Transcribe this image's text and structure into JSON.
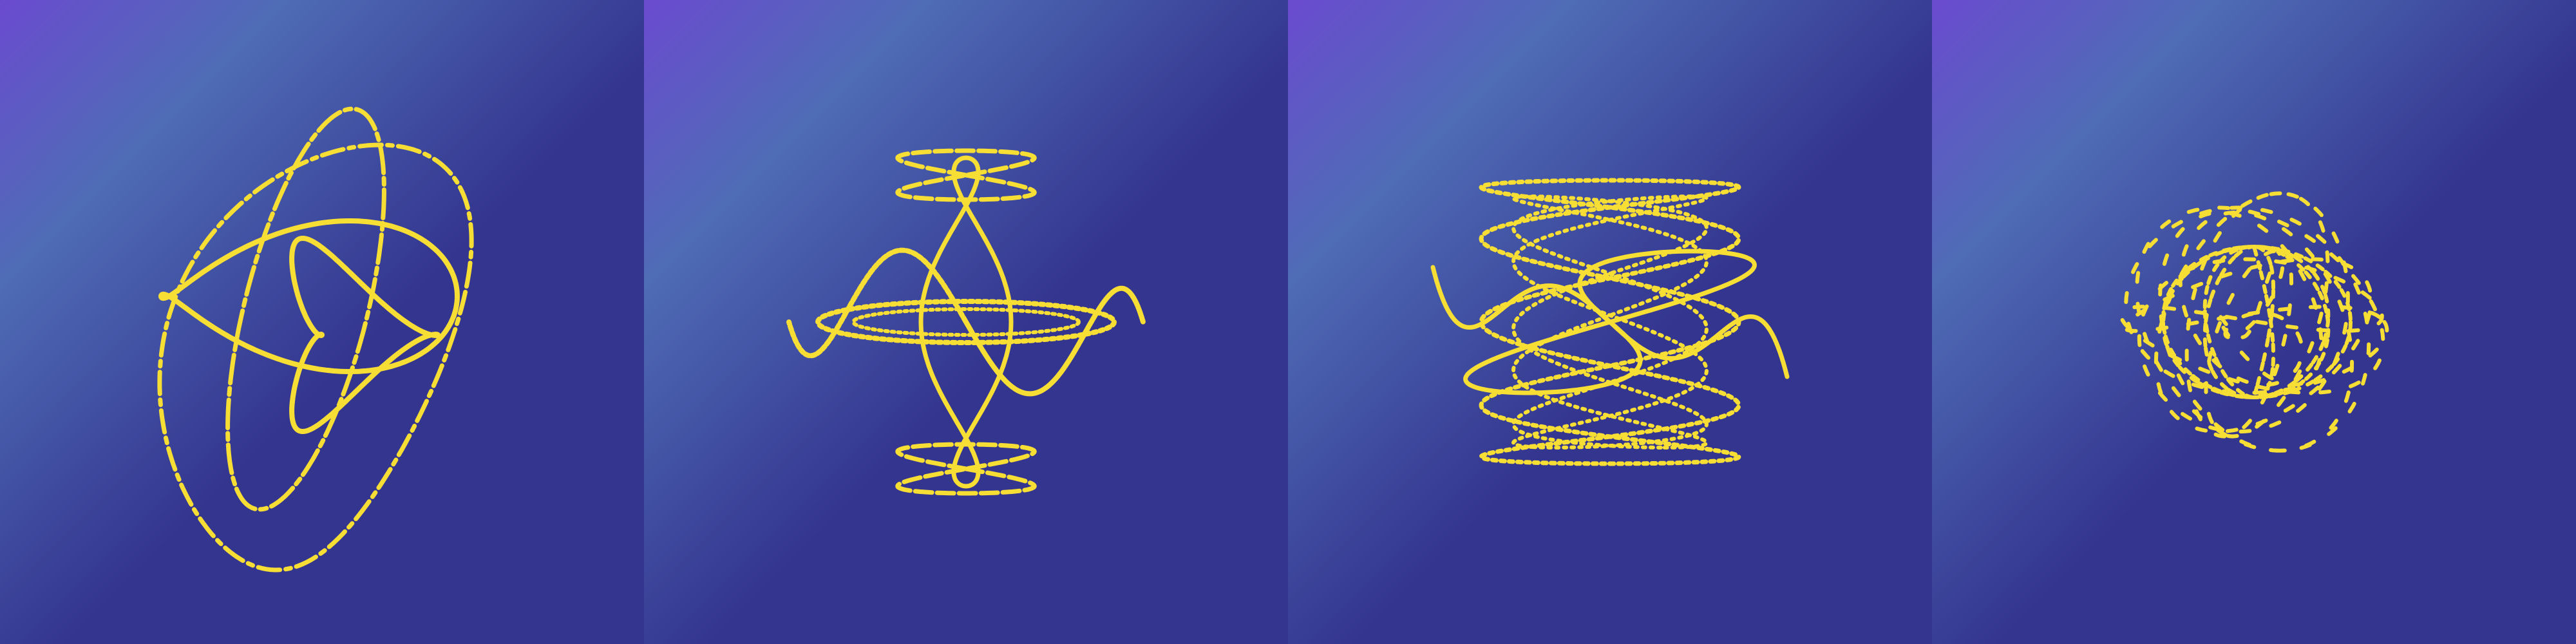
{
  "scene": {
    "background": {
      "corner_color": "#6a4bcf",
      "mid_color": "#4f6cb6",
      "base_color": "#34358f"
    },
    "curve_color": "#f7de35",
    "panels": [
      {
        "id": "panel-1",
        "figure": "tilted-rosette-loop",
        "stroke_style": "dash-dot"
      },
      {
        "id": "panel-2",
        "figure": "hourglass-lissajous",
        "stroke_style": "dotted"
      },
      {
        "id": "panel-3",
        "figure": "twisted-lissajous-lattice",
        "stroke_style": "dotted"
      },
      {
        "id": "panel-4",
        "figure": "scattered-spherical-curve",
        "stroke_style": "sparse-dash"
      }
    ]
  }
}
